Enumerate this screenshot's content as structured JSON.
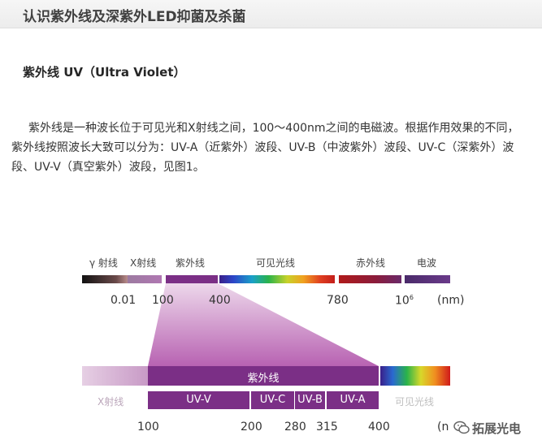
{
  "article": {
    "title": "认识紫外线及深紫外LED抑菌及杀菌",
    "subtitle": "紫外线 UV（Ultra Violet）",
    "paragraph": "紫外线是一种波长位于可见光和X射线之间，100～400nm之间的电磁波。根据作用效果的不同，紫外线按照波长大致可以分为：UV-A（近紫外）波段、UV-B（中波紫外）波段、UV-C（深紫外）波段、UV-V（真空紫外）波段，见图1。"
  },
  "figure": {
    "top_labels": {
      "gamma": "γ 射线",
      "xray": "X射线",
      "uv": "紫外线",
      "visible": "可见光线",
      "infrared": "赤外线",
      "radio": "电波"
    },
    "top_ticks": {
      "t1": "0.01",
      "t2": "100",
      "t3": "400",
      "t4": "780",
      "t5_base": "10",
      "t5_exp": "6",
      "unit": "(nm)"
    },
    "bottom": {
      "uv_label": "紫外线",
      "xray": "X射线",
      "visible": "可见光线",
      "uvv": "UV-V",
      "uvc": "UV-C",
      "uvb": "UV-B",
      "uva": "UV-A"
    },
    "bottom_ticks": {
      "t1": "100",
      "t2": "200",
      "t3": "280",
      "t4": "315",
      "t5": "400",
      "unit": "(n"
    },
    "colors": {
      "uv_purple": "#7b2f86",
      "xray_pink": "#d3a9d0",
      "gamma_dark": "#1a1a1a"
    }
  },
  "watermark": {
    "text": "拓展光电",
    "icon": "wechat-icon"
  }
}
